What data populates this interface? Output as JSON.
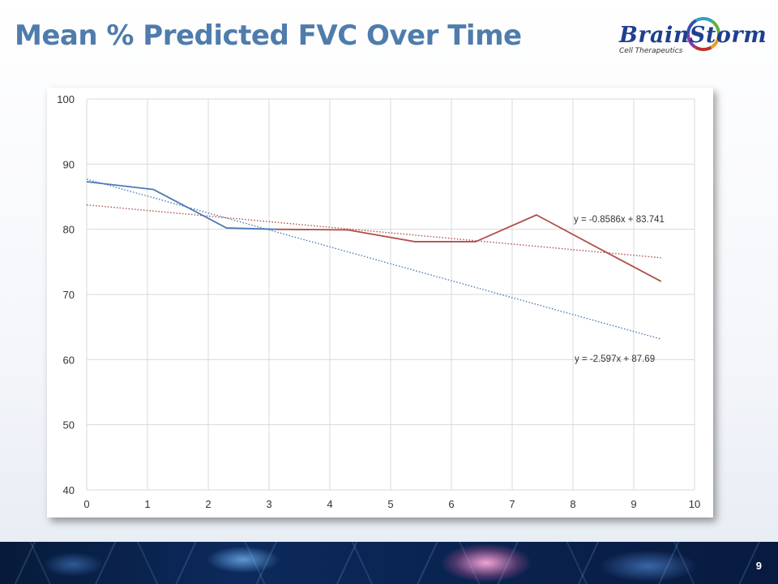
{
  "slide": {
    "title": "Mean % Predicted FVC Over Time",
    "page_number": "9"
  },
  "logo": {
    "name": "BrainStorm",
    "subtitle": "Cell Therapeutics"
  },
  "colors": {
    "title": "#4f7cac",
    "blue_series": "#4a7ab5",
    "red_series": "#b0504d",
    "grid": "#d9d9d9"
  },
  "chart_data": {
    "type": "line",
    "title": "",
    "xlabel": "",
    "ylabel": "",
    "xlim": [
      0,
      10
    ],
    "ylim": [
      40,
      100
    ],
    "x_ticks": [
      "0",
      "1",
      "2",
      "3",
      "4",
      "5",
      "6",
      "7",
      "8",
      "9",
      "10"
    ],
    "y_ticks": [
      "40",
      "50",
      "60",
      "70",
      "80",
      "90",
      "100"
    ],
    "grid": true,
    "legend": "none",
    "series": [
      {
        "color": "#4a7ab5",
        "x": [
          0,
          1.1,
          2.3,
          3.1
        ],
        "y": [
          87.3,
          86.1,
          80.2,
          80.0
        ]
      },
      {
        "color": "#b0504d",
        "x": [
          3.1,
          4.3,
          5.4,
          6.4,
          7.4,
          8.4,
          9.45
        ],
        "y": [
          80.0,
          79.9,
          78.1,
          78.1,
          82.2,
          77.2,
          72.0
        ]
      }
    ],
    "trendlines": [
      {
        "color": "#b0504d",
        "slope": -0.8586,
        "intercept": 83.741,
        "x_range": [
          0,
          9.45
        ],
        "equation": "y = -0.8586x + 83.741"
      },
      {
        "color": "#4a7ab5",
        "slope": -2.597,
        "intercept": 87.69,
        "x_range": [
          0,
          9.45
        ],
        "equation": "y = -2.597x + 87.69"
      }
    ]
  }
}
